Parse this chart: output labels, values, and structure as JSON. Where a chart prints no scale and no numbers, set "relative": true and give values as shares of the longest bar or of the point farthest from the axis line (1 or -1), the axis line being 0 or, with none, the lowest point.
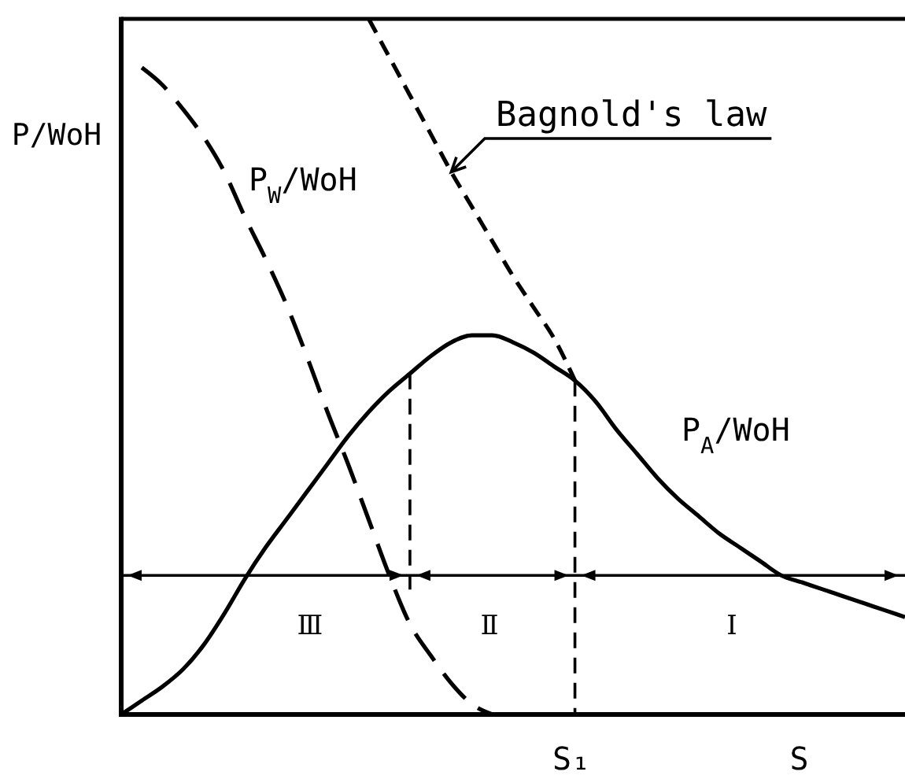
{
  "chart_data": {
    "type": "line",
    "relative": true,
    "ylabel": "P/WoH",
    "xlabel": "S",
    "categories": [
      null,
      null,
      null,
      null,
      null,
      null,
      null,
      null,
      null,
      null,
      null,
      null,
      null,
      null,
      null,
      null,
      null,
      null,
      null,
      null,
      null,
      null,
      null,
      null,
      null,
      null,
      null,
      null,
      null,
      null,
      null,
      null,
      null,
      null,
      null,
      null,
      null,
      null,
      null
    ],
    "series": [
      {
        "name": "P$_{W}$/WoH",
        "color": "#000000",
        "line_style": "dashed",
        "values": [
          null,
          0.93,
          0.905,
          0.87,
          0.83,
          0.78,
          0.715,
          0.655,
          0.59,
          0.515,
          0.435,
          0.36,
          0.28,
          0.2,
          0.13,
          0.085,
          0.045,
          0.015,
          0.0,
          null,
          null,
          null,
          null,
          null,
          null,
          null,
          null,
          null,
          null,
          null,
          null,
          null,
          null,
          null,
          null,
          null,
          null,
          null,
          null
        ]
      },
      {
        "name": "Bagnold's law",
        "color": "#000000",
        "line_style": "dashed",
        "values": [
          null,
          null,
          null,
          null,
          null,
          null,
          null,
          null,
          null,
          null,
          null,
          null,
          1.0,
          0.945,
          0.89,
          0.835,
          0.78,
          0.73,
          0.68,
          0.63,
          0.585,
          0.54,
          0.48,
          null,
          null,
          null,
          null,
          null,
          null,
          null,
          null,
          null,
          null,
          null,
          null,
          null,
          null,
          null,
          null
        ]
      },
      {
        "name": "P$_{A}$/WoH",
        "color": "#000000",
        "line_style": "solid",
        "values": [
          0,
          0.02,
          0.04,
          0.065,
          0.1,
          0.145,
          0.195,
          0.24,
          0.28,
          0.32,
          0.36,
          0.4,
          0.435,
          0.465,
          0.49,
          0.515,
          0.535,
          0.545,
          0.545,
          0.535,
          0.52,
          0.5,
          0.48,
          0.45,
          0.41,
          0.375,
          0.34,
          0.31,
          0.285,
          0.26,
          0.24,
          0.22,
          0.2,
          0.19,
          0.18,
          0.17,
          0.16,
          0.15,
          0.14
        ]
      }
    ],
    "ref_lines": [
      {
        "axis": "y",
        "value": 0.2
      }
    ],
    "annotations": [
      "Ⅲ",
      "Ⅱ",
      "Ⅰ",
      "S₁"
    ]
  }
}
